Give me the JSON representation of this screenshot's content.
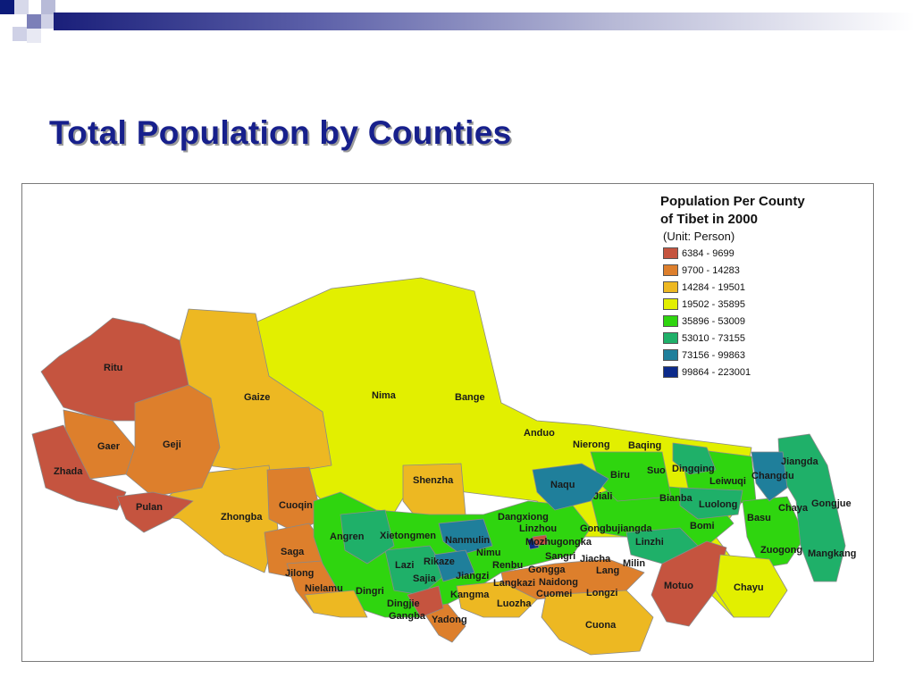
{
  "slide": {
    "title": "Total Population by Counties"
  },
  "legend": {
    "title_line1": "Population Per County",
    "title_line2": "of Tibet in 2000",
    "unit": "(Unit: Person)",
    "classes": [
      {
        "range": "6384 - 9699",
        "color": "#c5543f"
      },
      {
        "range": "9700 - 14283",
        "color": "#dd7f2c"
      },
      {
        "range": "14284 - 19501",
        "color": "#edb822"
      },
      {
        "range": "19502 - 35895",
        "color": "#e2ef00"
      },
      {
        "range": "35896 - 53009",
        "color": "#2fd50f"
      },
      {
        "range": "53010 - 73155",
        "color": "#1fb069"
      },
      {
        "range": "73156 - 99863",
        "color": "#1f7f9b"
      },
      {
        "range": "99864 - 223001",
        "color": "#0c2a8a"
      }
    ]
  },
  "counties": [
    "Ritu",
    "Gaize",
    "Nima",
    "Bange",
    "Anduo",
    "Nierong",
    "Baqing",
    "Biru",
    "Suo",
    "Dingqing",
    "Jiangda",
    "Changdu",
    "Leiwuqi",
    "Naqu",
    "Jiali",
    "Bianba",
    "Luolong",
    "Chaya",
    "Gongjue",
    "Basu",
    "Bomi",
    "Zuogong",
    "Mangkang",
    "Gaer",
    "Geji",
    "Zhada",
    "Pulan",
    "Zhongba",
    "Cuoqin",
    "Shenzha",
    "Dangxiong",
    "Linzhou",
    "Gongbujiangda",
    "Angren",
    "Xietongmen",
    "Nanmulin",
    "Mozhugongka",
    "Linzhi",
    "Saga",
    "Nimu",
    "Sangri",
    "Jiacha",
    "Lazi",
    "Rikaze",
    "Renbu",
    "Gongga",
    "Lang",
    "Milin",
    "Jilong",
    "Sajia",
    "Jiangzi",
    "Langkazi",
    "Naidong",
    "Motuo",
    "Nielamu",
    "Dingri",
    "Kangma",
    "Cuomei",
    "Longzi",
    "Chayu",
    "Dingjie",
    "Gangba",
    "Yadong",
    "Luozha",
    "Cuona"
  ]
}
